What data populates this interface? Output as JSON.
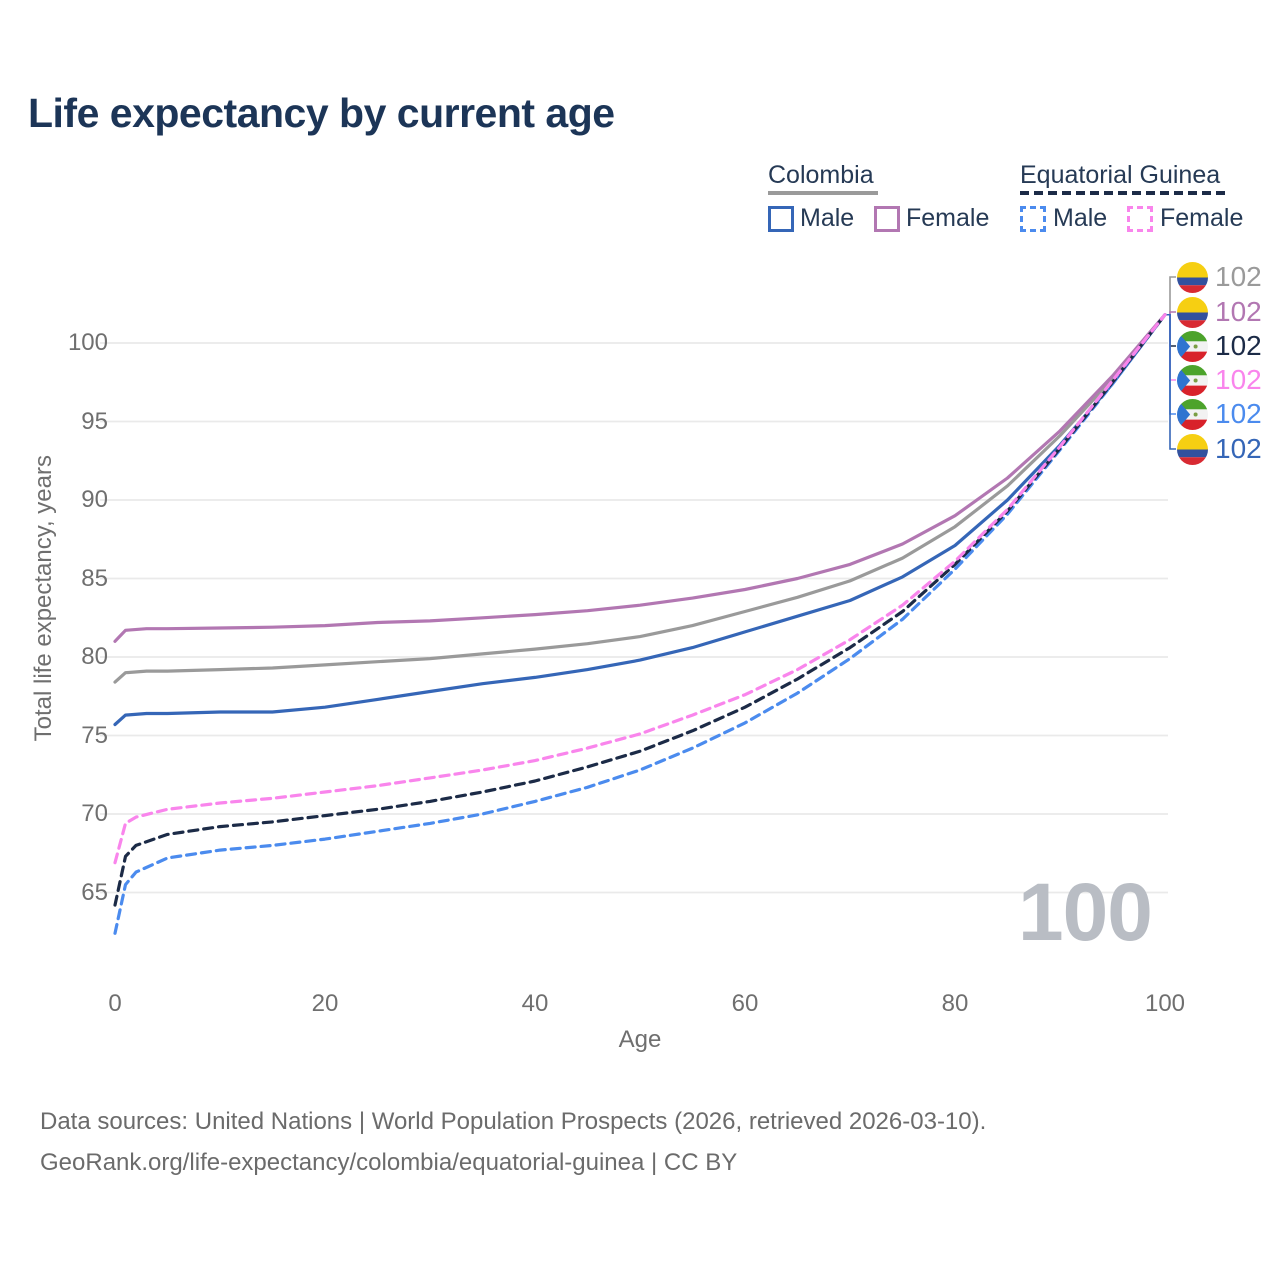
{
  "title": "Life expectancy by current age",
  "legend": {
    "colombia": {
      "label": "Colombia",
      "male": "Male",
      "female": "Female"
    },
    "equatorial_guinea": {
      "label": "Equatorial Guinea",
      "male": "Male",
      "female": "Female"
    }
  },
  "y_axis_title": "Total life expectancy, years",
  "x_axis_title": "Age",
  "watermark": "100",
  "footer": {
    "line1": "Data sources: United Nations | World Population Prospects (2026, retrieved 2026-03-10).",
    "line2": "GeoRank.org/life-expectancy/colombia/equatorial-guinea | CC BY"
  },
  "colors": {
    "colombia_male": "#3566b7",
    "colombia_female": "#b277b2",
    "colombia_both": "#9a9a9a",
    "eqg_male": "#4b8bee",
    "eqg_female": "#f985ec",
    "eqg_both": "#1c2b47",
    "title": "#1c3557",
    "axis_text": "#6f6f6f",
    "grid": "#eaeaea",
    "watermark": "#b9bdc4"
  },
  "chart_data": {
    "type": "line",
    "title": "Life expectancy by current age",
    "xlabel": "Age",
    "ylabel": "Total life expectancy, years",
    "xlim": [
      0,
      100
    ],
    "ylim": [
      65,
      100
    ],
    "x_ticks": [
      0,
      20,
      40,
      60,
      80,
      100
    ],
    "y_ticks": [
      65,
      70,
      75,
      80,
      85,
      90,
      95,
      100
    ],
    "grid": "horizontal-only",
    "legend_position": "top-right",
    "series": [
      {
        "name": "Colombia Both sexes",
        "color_key": "colombia_both",
        "dashed": false,
        "points": [
          [
            0,
            78.4
          ],
          [
            1,
            79.0
          ],
          [
            3,
            79.1
          ],
          [
            5,
            79.1
          ],
          [
            10,
            79.2
          ],
          [
            15,
            79.3
          ],
          [
            20,
            79.5
          ],
          [
            25,
            79.7
          ],
          [
            30,
            79.9
          ],
          [
            35,
            80.2
          ],
          [
            40,
            80.5
          ],
          [
            45,
            80.85
          ],
          [
            50,
            81.3
          ],
          [
            55,
            82.0
          ],
          [
            60,
            82.9
          ],
          [
            65,
            83.8
          ],
          [
            70,
            84.85
          ],
          [
            75,
            86.3
          ],
          [
            80,
            88.3
          ],
          [
            85,
            90.9
          ],
          [
            90,
            94.1
          ],
          [
            95,
            97.7
          ],
          [
            100,
            101.8
          ]
        ]
      },
      {
        "name": "Colombia Male",
        "color_key": "colombia_male",
        "dashed": false,
        "points": [
          [
            0,
            75.7
          ],
          [
            1,
            76.3
          ],
          [
            3,
            76.4
          ],
          [
            5,
            76.4
          ],
          [
            10,
            76.5
          ],
          [
            15,
            76.5
          ],
          [
            20,
            76.8
          ],
          [
            25,
            77.3
          ],
          [
            30,
            77.8
          ],
          [
            35,
            78.3
          ],
          [
            40,
            78.7
          ],
          [
            45,
            79.2
          ],
          [
            50,
            79.8
          ],
          [
            55,
            80.6
          ],
          [
            60,
            81.6
          ],
          [
            65,
            82.6
          ],
          [
            70,
            83.6
          ],
          [
            75,
            85.1
          ],
          [
            80,
            87.1
          ],
          [
            85,
            90.0
          ],
          [
            90,
            93.5
          ],
          [
            95,
            97.4
          ],
          [
            100,
            101.8
          ]
        ]
      },
      {
        "name": "Colombia Female",
        "color_key": "colombia_female",
        "dashed": false,
        "points": [
          [
            0,
            81.0
          ],
          [
            1,
            81.7
          ],
          [
            3,
            81.8
          ],
          [
            5,
            81.8
          ],
          [
            10,
            81.85
          ],
          [
            15,
            81.9
          ],
          [
            20,
            82.0
          ],
          [
            25,
            82.2
          ],
          [
            30,
            82.3
          ],
          [
            35,
            82.5
          ],
          [
            40,
            82.7
          ],
          [
            45,
            82.95
          ],
          [
            50,
            83.3
          ],
          [
            55,
            83.75
          ],
          [
            60,
            84.3
          ],
          [
            65,
            85.0
          ],
          [
            70,
            85.9
          ],
          [
            75,
            87.2
          ],
          [
            80,
            89.0
          ],
          [
            85,
            91.4
          ],
          [
            90,
            94.4
          ],
          [
            95,
            97.9
          ],
          [
            100,
            101.8
          ]
        ]
      },
      {
        "name": "Equatorial Guinea Male",
        "color_key": "eqg_male",
        "dashed": true,
        "points": [
          [
            0,
            62.4
          ],
          [
            1,
            65.5
          ],
          [
            2,
            66.3
          ],
          [
            5,
            67.2
          ],
          [
            10,
            67.7
          ],
          [
            15,
            68.0
          ],
          [
            20,
            68.4
          ],
          [
            25,
            68.9
          ],
          [
            30,
            69.4
          ],
          [
            35,
            70.0
          ],
          [
            40,
            70.8
          ],
          [
            45,
            71.7
          ],
          [
            50,
            72.8
          ],
          [
            55,
            74.2
          ],
          [
            60,
            75.8
          ],
          [
            65,
            77.7
          ],
          [
            70,
            79.9
          ],
          [
            75,
            82.4
          ],
          [
            80,
            85.6
          ],
          [
            85,
            89.1
          ],
          [
            90,
            93.2
          ],
          [
            95,
            97.4
          ],
          [
            100,
            101.8
          ]
        ]
      },
      {
        "name": "Equatorial Guinea Both sexes",
        "color_key": "eqg_both",
        "dashed": true,
        "points": [
          [
            0,
            64.2
          ],
          [
            1,
            67.3
          ],
          [
            2,
            68.0
          ],
          [
            5,
            68.7
          ],
          [
            10,
            69.2
          ],
          [
            15,
            69.5
          ],
          [
            20,
            69.9
          ],
          [
            25,
            70.3
          ],
          [
            30,
            70.8
          ],
          [
            35,
            71.4
          ],
          [
            40,
            72.1
          ],
          [
            45,
            73.0
          ],
          [
            50,
            74.0
          ],
          [
            55,
            75.3
          ],
          [
            60,
            76.8
          ],
          [
            65,
            78.6
          ],
          [
            70,
            80.6
          ],
          [
            75,
            82.9
          ],
          [
            80,
            85.9
          ],
          [
            85,
            89.3
          ],
          [
            90,
            93.3
          ],
          [
            95,
            97.5
          ],
          [
            100,
            101.8
          ]
        ]
      },
      {
        "name": "Equatorial Guinea Female",
        "color_key": "eqg_female",
        "dashed": true,
        "points": [
          [
            0,
            66.9
          ],
          [
            1,
            69.4
          ],
          [
            2,
            69.8
          ],
          [
            5,
            70.3
          ],
          [
            10,
            70.7
          ],
          [
            15,
            71.0
          ],
          [
            20,
            71.4
          ],
          [
            25,
            71.8
          ],
          [
            30,
            72.3
          ],
          [
            35,
            72.8
          ],
          [
            40,
            73.4
          ],
          [
            45,
            74.2
          ],
          [
            50,
            75.1
          ],
          [
            55,
            76.3
          ],
          [
            60,
            77.6
          ],
          [
            65,
            79.2
          ],
          [
            70,
            81.1
          ],
          [
            75,
            83.3
          ],
          [
            80,
            86.1
          ],
          [
            85,
            89.4
          ],
          [
            90,
            93.4
          ],
          [
            95,
            97.6
          ],
          [
            100,
            101.8
          ]
        ]
      }
    ],
    "end_labels": [
      {
        "flag": "colombia",
        "value": "102",
        "color_key": "colombia_both"
      },
      {
        "flag": "colombia",
        "value": "102",
        "color_key": "colombia_female"
      },
      {
        "flag": "eqg",
        "value": "102",
        "color_key": "eqg_both"
      },
      {
        "flag": "eqg",
        "value": "102",
        "color_key": "eqg_female"
      },
      {
        "flag": "eqg",
        "value": "102",
        "color_key": "eqg_male"
      },
      {
        "flag": "colombia",
        "value": "102",
        "color_key": "colombia_male"
      }
    ]
  }
}
